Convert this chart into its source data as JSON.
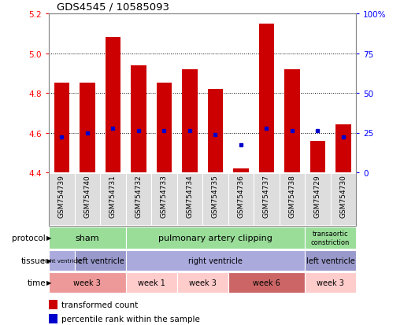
{
  "title": "GDS4545 / 10585093",
  "samples": [
    "GSM754739",
    "GSM754740",
    "GSM754731",
    "GSM754732",
    "GSM754733",
    "GSM754734",
    "GSM754735",
    "GSM754736",
    "GSM754737",
    "GSM754738",
    "GSM754729",
    "GSM754730"
  ],
  "bar_values": [
    4.85,
    4.85,
    5.08,
    4.94,
    4.85,
    4.92,
    4.82,
    4.42,
    5.15,
    4.92,
    4.56,
    4.64
  ],
  "bar_base": 4.4,
  "percentile_values": [
    4.58,
    4.6,
    4.62,
    4.61,
    4.61,
    4.61,
    4.59,
    4.54,
    4.62,
    4.61,
    4.61,
    4.58
  ],
  "bar_color": "#cc0000",
  "percentile_color": "#0000cc",
  "ylim": [
    4.4,
    5.2
  ],
  "yticks": [
    4.4,
    4.6,
    4.8,
    5.0,
    5.2
  ],
  "right_yticks": [
    0,
    25,
    50,
    75,
    100
  ],
  "grid_values": [
    4.6,
    4.8,
    5.0
  ],
  "label_bg_color": "#dddddd",
  "protocol_groups": [
    {
      "label": "sham",
      "start": 0,
      "end": 3,
      "color": "#99dd99"
    },
    {
      "label": "pulmonary artery clipping",
      "start": 3,
      "end": 10,
      "color": "#99dd99"
    },
    {
      "label": "transaortic\nconstriction",
      "start": 10,
      "end": 12,
      "color": "#99dd99"
    }
  ],
  "tissue_groups": [
    {
      "label": "right ventricle",
      "start": 0,
      "end": 1,
      "color": "#aaaadd"
    },
    {
      "label": "left ventricle",
      "start": 1,
      "end": 3,
      "color": "#9999cc"
    },
    {
      "label": "right ventricle",
      "start": 3,
      "end": 10,
      "color": "#aaaadd"
    },
    {
      "label": "left ventricle",
      "start": 10,
      "end": 12,
      "color": "#9999cc"
    }
  ],
  "time_groups": [
    {
      "label": "week 3",
      "start": 0,
      "end": 3,
      "color": "#ee9999"
    },
    {
      "label": "week 1",
      "start": 3,
      "end": 5,
      "color": "#ffcccc"
    },
    {
      "label": "week 3",
      "start": 5,
      "end": 7,
      "color": "#ffcccc"
    },
    {
      "label": "week 6",
      "start": 7,
      "end": 10,
      "color": "#cc6666"
    },
    {
      "label": "week 3",
      "start": 10,
      "end": 12,
      "color": "#ffcccc"
    }
  ],
  "row_labels": [
    "protocol",
    "tissue",
    "time"
  ],
  "legend_bar_label": "transformed count",
  "legend_pct_label": "percentile rank within the sample",
  "background_color": "#ffffff"
}
